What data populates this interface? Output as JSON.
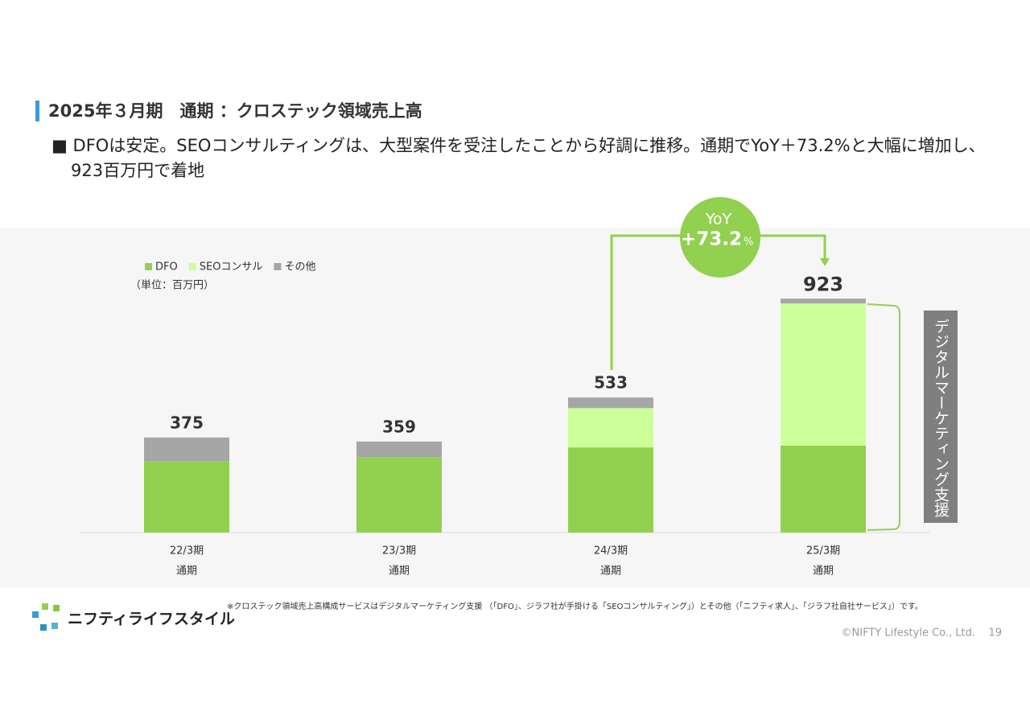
{
  "title": "2025年３月期　通期 ：クロステック領域売上高",
  "bullet": "DFOは安定。SEOコンサルティングは、大型案件を受注したことから好調に推移。通期でYoY＋73.2%と大幅に増加し、923百万円で着地",
  "chart_data": {
    "type": "stacked-bar",
    "unit_label": "（単位：百万円）",
    "categories": [
      "22/3期",
      "23/3期",
      "24/3期",
      "25/3期"
    ],
    "category_sublabels": [
      "通期",
      "通期",
      "通期",
      "通期"
    ],
    "series": [
      {
        "name": "DFO",
        "color": "#92d050",
        "values": [
          282,
          298,
          336,
          343
        ]
      },
      {
        "name": "SEOコンサル",
        "color": "#ccff99",
        "values": [
          0,
          0,
          155,
          561
        ]
      },
      {
        "name": "その他",
        "color": "#a6a6a6",
        "values": [
          93,
          61,
          42,
          19
        ]
      }
    ],
    "totals": [
      375,
      359,
      533,
      923
    ],
    "ylim": [
      0,
      1000
    ],
    "yoy": {
      "label": "YoY",
      "value": "+73.2",
      "unit": "%"
    },
    "side_label": "デジタルマーケティング支援"
  },
  "footnote": "※クロステック領域売上高構成サービスはデジタルマーケティング支援 （「DFO」、ジラフ社が手掛ける「SEOコンサルティング」）とその他（「ニフティ求人」、「ジラフ社自社サービス」）です。",
  "logo": "ニフティライフスタイル",
  "copyright": "©NIFTY Lifestyle Co., Ltd.",
  "page_number": "19"
}
